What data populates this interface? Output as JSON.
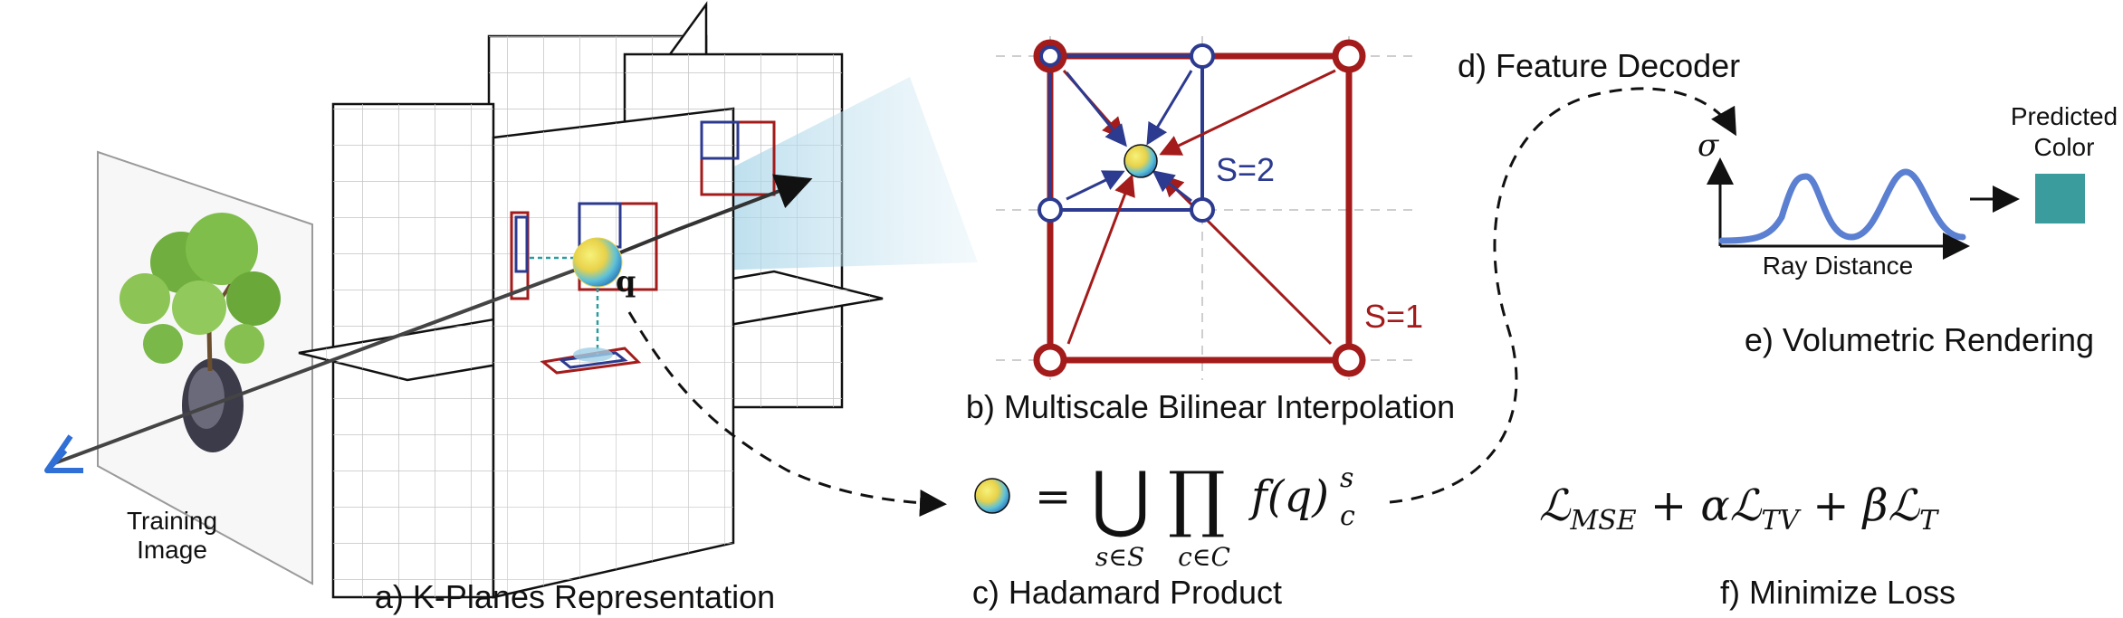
{
  "panels": {
    "a": {
      "caption": "a) K-Planes Representation",
      "training_label": [
        "Training",
        "Image"
      ],
      "query_label": "q"
    },
    "b": {
      "caption": "b) Multiscale Bilinear Interpolation",
      "scale_fine": "S=2",
      "scale_coarse": "S=1"
    },
    "c": {
      "caption": "c) Hadamard Product",
      "equals": "=",
      "union": "⋃",
      "product": "∏",
      "union_sub": "s∈S",
      "product_sub": "c∈C",
      "term": "f(q)",
      "sup": "s",
      "sub": "c"
    },
    "d": {
      "caption": "d) Feature Decoder"
    },
    "e": {
      "caption": "e) Volumetric Rendering",
      "y_axis": "σ",
      "x_axis": "Ray Distance",
      "output_label": [
        "Predicted",
        "Color"
      ]
    },
    "f": {
      "caption": "f) Minimize Loss",
      "loss": [
        "ℒ",
        "MSE",
        " + α",
        "ℒ",
        "TV",
        " + β",
        "ℒ",
        "T"
      ]
    }
  },
  "colors": {
    "red": "#a31b1b",
    "blue": "#2c3a8f",
    "teal": "#3a9c9c",
    "curve": "#5b7fd1",
    "camera": "#2f6fd6"
  },
  "icons": {
    "camera": "camera-frustum-icon",
    "feature_point": "feature-sphere-icon"
  }
}
